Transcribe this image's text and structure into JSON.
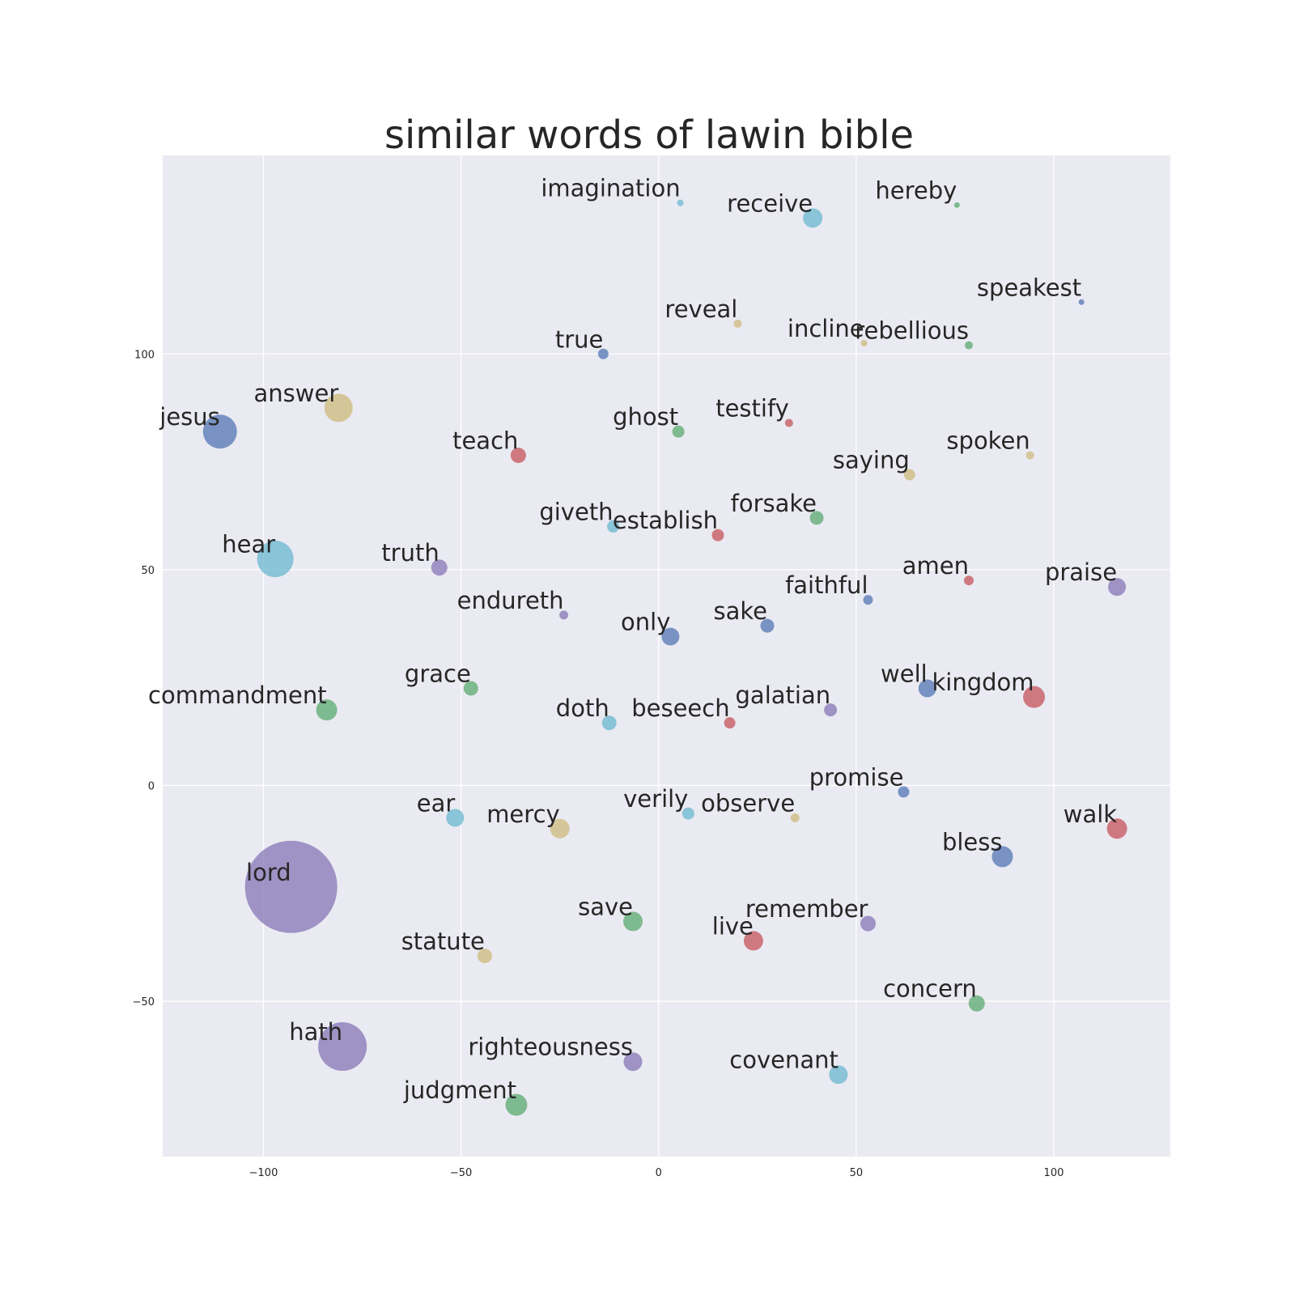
{
  "chart_data": {
    "type": "scatter",
    "title": "similar words of lawin bible",
    "xlabel": "",
    "ylabel": "",
    "xlim": [
      -125.5,
      129.5
    ],
    "ylim": [
      -86,
      146
    ],
    "x_ticks": [
      {
        "value": -100,
        "label": "−100"
      },
      {
        "value": -50,
        "label": "−50"
      },
      {
        "value": 0,
        "label": "0"
      },
      {
        "value": 50,
        "label": "50"
      },
      {
        "value": 100,
        "label": "100"
      }
    ],
    "y_ticks": [
      {
        "value": -50,
        "label": "−50"
      },
      {
        "value": 0,
        "label": "0"
      },
      {
        "value": 50,
        "label": "50"
      },
      {
        "value": 100,
        "label": "100"
      }
    ],
    "grid": true,
    "background_color": "#eaeaf2",
    "palette": {
      "blue": "#4c72b0",
      "green": "#55a868",
      "red": "#c44e52",
      "purple": "#8172b2",
      "yellow": "#ccb974",
      "cyan": "#64b5cd"
    },
    "points": [
      {
        "word": "imagination",
        "x": 5.5,
        "y": 135,
        "r": 4,
        "color": "#64b5cd"
      },
      {
        "word": "receive",
        "x": 39,
        "y": 131.5,
        "r": 12,
        "color": "#64b5cd"
      },
      {
        "word": "hereby",
        "x": 75.5,
        "y": 134.5,
        "r": 3.5,
        "color": "#55a868"
      },
      {
        "word": "speakest",
        "x": 107,
        "y": 112,
        "r": 3.5,
        "color": "#4c72b0"
      },
      {
        "word": "reveal",
        "x": 20,
        "y": 107,
        "r": 5,
        "color": "#ccb974"
      },
      {
        "word": "incline",
        "x": 52,
        "y": 102.5,
        "r": 4,
        "color": "#ccb974"
      },
      {
        "word": "rebellious",
        "x": 78.5,
        "y": 102,
        "r": 5,
        "color": "#55a868"
      },
      {
        "word": "true",
        "x": -14,
        "y": 100,
        "r": 6.5,
        "color": "#4c72b0"
      },
      {
        "word": "answer",
        "x": -81,
        "y": 87.5,
        "r": 17.5,
        "color": "#ccb974"
      },
      {
        "word": "jesus",
        "x": -111,
        "y": 82,
        "r": 21,
        "color": "#4c72b0"
      },
      {
        "word": "testify",
        "x": 33,
        "y": 84,
        "r": 5,
        "color": "#c44e52"
      },
      {
        "word": "ghost",
        "x": 5,
        "y": 82,
        "r": 7.5,
        "color": "#55a868"
      },
      {
        "word": "teach",
        "x": -35.5,
        "y": 76.5,
        "r": 9.5,
        "color": "#c44e52"
      },
      {
        "word": "spoken",
        "x": 94,
        "y": 76.5,
        "r": 5,
        "color": "#ccb974"
      },
      {
        "word": "saying",
        "x": 63.5,
        "y": 72,
        "r": 7,
        "color": "#ccb974"
      },
      {
        "word": "forsake",
        "x": 40,
        "y": 62,
        "r": 8.5,
        "color": "#55a868"
      },
      {
        "word": "giveth",
        "x": -11.5,
        "y": 60,
        "r": 7.5,
        "color": "#64b5cd"
      },
      {
        "word": "establish",
        "x": 15,
        "y": 58,
        "r": 7.5,
        "color": "#c44e52"
      },
      {
        "word": "hear",
        "x": -97,
        "y": 52.5,
        "r": 22.5,
        "color": "#64b5cd"
      },
      {
        "word": "truth",
        "x": -55.5,
        "y": 50.5,
        "r": 10,
        "color": "#8172b2"
      },
      {
        "word": "amen",
        "x": 78.5,
        "y": 47.5,
        "r": 6,
        "color": "#c44e52"
      },
      {
        "word": "praise",
        "x": 116,
        "y": 46,
        "r": 11,
        "color": "#8172b2"
      },
      {
        "word": "faithful",
        "x": 53,
        "y": 43,
        "r": 6,
        "color": "#4c72b0"
      },
      {
        "word": "endureth",
        "x": -24,
        "y": 39.5,
        "r": 5.5,
        "color": "#8172b2"
      },
      {
        "word": "sake",
        "x": 27.5,
        "y": 37,
        "r": 8.5,
        "color": "#4c72b0"
      },
      {
        "word": "only",
        "x": 3,
        "y": 34.5,
        "r": 11,
        "color": "#4c72b0"
      },
      {
        "word": "grace",
        "x": -47.5,
        "y": 22.5,
        "r": 9,
        "color": "#55a868"
      },
      {
        "word": "well",
        "x": 68,
        "y": 22.5,
        "r": 11,
        "color": "#4c72b0"
      },
      {
        "word": "kingdom",
        "x": 95,
        "y": 20.5,
        "r": 13.5,
        "color": "#c44e52"
      },
      {
        "word": "commandment",
        "x": -84,
        "y": 17.5,
        "r": 13,
        "color": "#55a868"
      },
      {
        "word": "galatian",
        "x": 43.5,
        "y": 17.5,
        "r": 8,
        "color": "#8172b2"
      },
      {
        "word": "doth",
        "x": -12.5,
        "y": 14.5,
        "r": 9,
        "color": "#64b5cd"
      },
      {
        "word": "beseech",
        "x": 18,
        "y": 14.5,
        "r": 7,
        "color": "#c44e52"
      },
      {
        "word": "promise",
        "x": 62,
        "y": -1.5,
        "r": 7,
        "color": "#4c72b0"
      },
      {
        "word": "verily",
        "x": 7.5,
        "y": -6.5,
        "r": 7.5,
        "color": "#64b5cd"
      },
      {
        "word": "observe",
        "x": 34.5,
        "y": -7.5,
        "r": 5.5,
        "color": "#ccb974"
      },
      {
        "word": "ear",
        "x": -51.5,
        "y": -7.5,
        "r": 11,
        "color": "#64b5cd"
      },
      {
        "word": "mercy",
        "x": -25,
        "y": -10,
        "r": 12,
        "color": "#ccb974"
      },
      {
        "word": "walk",
        "x": 116,
        "y": -10,
        "r": 12.5,
        "color": "#c44e52"
      },
      {
        "word": "bless",
        "x": 87,
        "y": -16.5,
        "r": 13,
        "color": "#4c72b0"
      },
      {
        "word": "lord",
        "x": -93,
        "y": -23.5,
        "r": 57,
        "color": "#8172b2"
      },
      {
        "word": "save",
        "x": -6.5,
        "y": -31.5,
        "r": 12,
        "color": "#55a868"
      },
      {
        "word": "remember",
        "x": 53,
        "y": -32,
        "r": 9.5,
        "color": "#8172b2"
      },
      {
        "word": "live",
        "x": 24,
        "y": -36,
        "r": 12,
        "color": "#c44e52"
      },
      {
        "word": "statute",
        "x": -44,
        "y": -39.5,
        "r": 9,
        "color": "#ccb974"
      },
      {
        "word": "concern",
        "x": 80.5,
        "y": -50.5,
        "r": 10,
        "color": "#55a868"
      },
      {
        "word": "hath",
        "x": -80,
        "y": -60.5,
        "r": 30,
        "color": "#8172b2"
      },
      {
        "word": "righteousness",
        "x": -6.5,
        "y": -64,
        "r": 11.5,
        "color": "#8172b2"
      },
      {
        "word": "covenant",
        "x": 45.5,
        "y": -67,
        "r": 11.5,
        "color": "#64b5cd"
      },
      {
        "word": "judgment",
        "x": -36,
        "y": -74,
        "r": 13.5,
        "color": "#55a868"
      }
    ]
  }
}
